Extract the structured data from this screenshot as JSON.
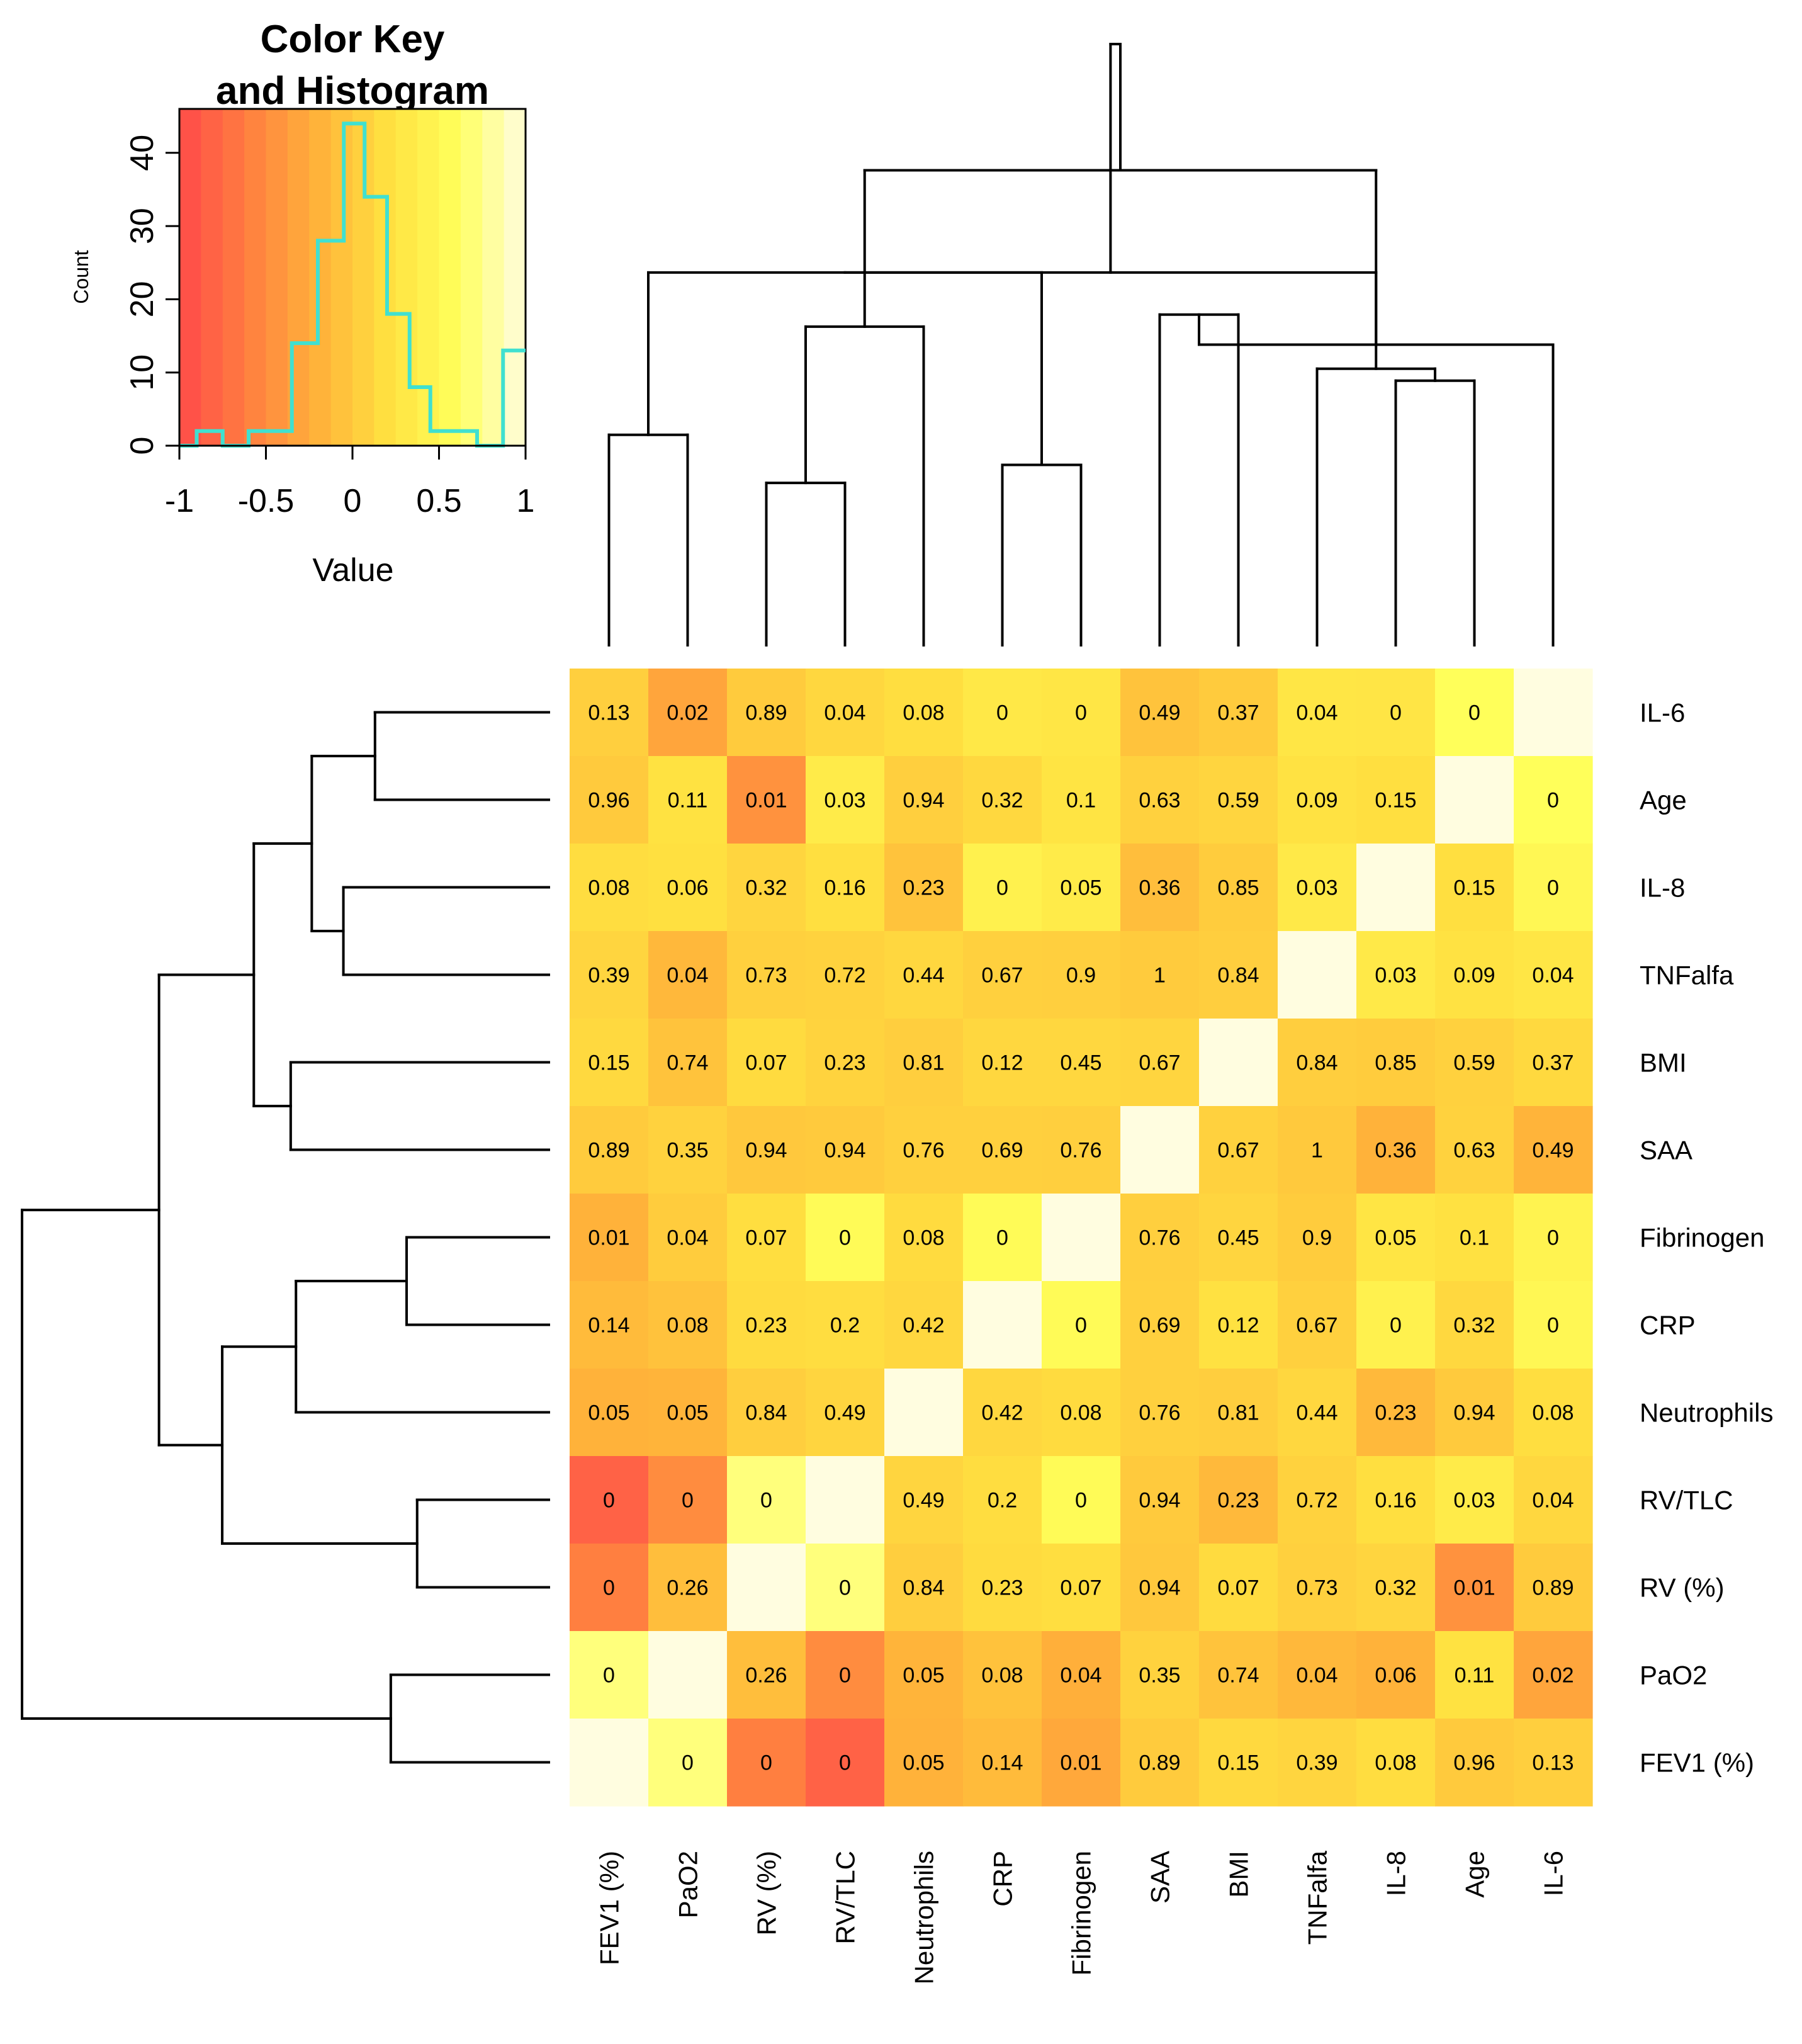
{
  "chart_data": {
    "type": "heatmap",
    "key": {
      "title_lines": [
        "Color Key",
        "and Histogram"
      ],
      "xlabel": "Value",
      "ylabel": "Count",
      "x_ticks": [
        "-1",
        "-0.5",
        "0",
        "0.5",
        "1"
      ],
      "y_ticks": [
        "0",
        "10",
        "20",
        "30",
        "40"
      ],
      "xlim": [
        -1,
        1
      ],
      "ylim": [
        0,
        46
      ],
      "histogram_color": "#40e0d0",
      "histogram": [
        {
          "x0": -1.0,
          "x1": -0.9,
          "count": 0
        },
        {
          "x0": -0.9,
          "x1": -0.75,
          "count": 2
        },
        {
          "x0": -0.75,
          "x1": -0.6,
          "count": 0
        },
        {
          "x0": -0.6,
          "x1": -0.35,
          "count": 2
        },
        {
          "x0": -0.35,
          "x1": -0.2,
          "count": 14
        },
        {
          "x0": -0.2,
          "x1": -0.05,
          "count": 28
        },
        {
          "x0": -0.05,
          "x1": 0.07,
          "count": 44
        },
        {
          "x0": 0.07,
          "x1": 0.2,
          "count": 34
        },
        {
          "x0": 0.2,
          "x1": 0.33,
          "count": 18
        },
        {
          "x0": 0.33,
          "x1": 0.45,
          "count": 8
        },
        {
          "x0": 0.45,
          "x1": 0.72,
          "count": 2
        },
        {
          "x0": 0.72,
          "x1": 0.87,
          "count": 0
        },
        {
          "x0": 0.87,
          "x1": 1.0,
          "count": 13
        }
      ]
    },
    "color_scale": [
      "#ff4a4a",
      "#ff7f40",
      "#ffb23a",
      "#ffe040",
      "#ffff5a",
      "#fffde0"
    ],
    "columns": [
      "FEV1 (%)",
      "PaO2",
      "RV (%)",
      "RV/TLC",
      "Neutrophils",
      "CRP",
      "Fibrinogen",
      "SAA",
      "BMI",
      "TNFalfa",
      "IL-8",
      "Age",
      "IL-6"
    ],
    "rows": [
      "IL-6",
      "Age",
      "IL-8",
      "TNFalfa",
      "BMI",
      "SAA",
      "Fibrinogen",
      "CRP",
      "Neutrophils",
      "RV/TLC",
      "RV (%)",
      "PaO2",
      "FEV1 (%)"
    ],
    "labels": [
      [
        "0.13",
        "0.02",
        "0.89",
        "0.04",
        "0.08",
        "0",
        "0",
        "0.49",
        "0.37",
        "0.04",
        "0",
        "0",
        ""
      ],
      [
        "0.96",
        "0.11",
        "0.01",
        "0.03",
        "0.94",
        "0.32",
        "0.1",
        "0.63",
        "0.59",
        "0.09",
        "0.15",
        "",
        "0"
      ],
      [
        "0.08",
        "0.06",
        "0.32",
        "0.16",
        "0.23",
        "0",
        "0.05",
        "0.36",
        "0.85",
        "0.03",
        "",
        "0.15",
        "0"
      ],
      [
        "0.39",
        "0.04",
        "0.73",
        "0.72",
        "0.44",
        "0.67",
        "0.9",
        "1",
        "0.84",
        "",
        "0.03",
        "0.09",
        "0.04"
      ],
      [
        "0.15",
        "0.74",
        "0.07",
        "0.23",
        "0.81",
        "0.12",
        "0.45",
        "0.67",
        "",
        "0.84",
        "0.85",
        "0.59",
        "0.37"
      ],
      [
        "0.89",
        "0.35",
        "0.94",
        "0.94",
        "0.76",
        "0.69",
        "0.76",
        "",
        "0.67",
        "1",
        "0.36",
        "0.63",
        "0.49"
      ],
      [
        "0.01",
        "0.04",
        "0.07",
        "0",
        "0.08",
        "0",
        "",
        "0.76",
        "0.45",
        "0.9",
        "0.05",
        "0.1",
        "0"
      ],
      [
        "0.14",
        "0.08",
        "0.23",
        "0.2",
        "0.42",
        "",
        "0",
        "0.69",
        "0.12",
        "0.67",
        "0",
        "0.32",
        "0"
      ],
      [
        "0.05",
        "0.05",
        "0.84",
        "0.49",
        "",
        "0.42",
        "0.08",
        "0.76",
        "0.81",
        "0.44",
        "0.23",
        "0.94",
        "0.08"
      ],
      [
        "0",
        "0",
        "0",
        "",
        "0.49",
        "0.2",
        "0",
        "0.94",
        "0.23",
        "0.72",
        "0.16",
        "0.03",
        "0.04"
      ],
      [
        "0",
        "0.26",
        "",
        "0",
        "0.84",
        "0.23",
        "0.07",
        "0.94",
        "0.07",
        "0.73",
        "0.32",
        "0.01",
        "0.89"
      ],
      [
        "0",
        "",
        "0.26",
        "0",
        "0.05",
        "0.08",
        "0.04",
        "0.35",
        "0.74",
        "0.04",
        "0.06",
        "0.11",
        "0.02"
      ],
      [
        "",
        "0",
        "0",
        "0",
        "0.05",
        "0.14",
        "0.01",
        "0.89",
        "0.15",
        "0.39",
        "0.08",
        "0.96",
        "0.13"
      ]
    ],
    "correlations": [
      [
        0.05,
        -0.3,
        0.02,
        0.12,
        0.18,
        0.3,
        0.28,
        -0.05,
        0.02,
        0.28,
        0.27,
        0.6,
        1
      ],
      [
        0.01,
        0.22,
        -0.45,
        0.34,
        0.05,
        0.13,
        0.25,
        0.07,
        0.1,
        0.23,
        0.19,
        1,
        0.6
      ],
      [
        0.17,
        0.2,
        0.1,
        0.19,
        -0.05,
        0.42,
        0.34,
        -0.1,
        0.03,
        0.32,
        1,
        0.19,
        0.5
      ],
      [
        0.1,
        -0.15,
        0.06,
        0.08,
        0.12,
        0.06,
        0.05,
        0.02,
        0.04,
        1,
        0.32,
        0.23,
        0.28
      ],
      [
        0.14,
        -0.05,
        0.16,
        0.09,
        0.04,
        0.12,
        0.12,
        0.1,
        1,
        0.04,
        0.03,
        0.07,
        0.14
      ],
      [
        0.02,
        0.08,
        -0.01,
        0.01,
        0.06,
        0.06,
        0.05,
        1,
        0.07,
        0.0,
        -0.2,
        0.08,
        -0.18
      ],
      [
        -0.2,
        0.03,
        0.18,
        0.55,
        0.16,
        0.55,
        1,
        0.05,
        0.1,
        0.03,
        0.26,
        0.21,
        0.44
      ],
      [
        -0.12,
        -0.06,
        0.16,
        0.17,
        0.12,
        1,
        0.55,
        0.06,
        0.21,
        0.06,
        0.42,
        0.13,
        0.5
      ],
      [
        -0.2,
        -0.18,
        0.04,
        0.1,
        1,
        0.12,
        0.16,
        0.06,
        0.04,
        0.12,
        -0.14,
        0.01,
        0.18
      ],
      [
        -0.82,
        -0.5,
        0.7,
        1,
        0.1,
        0.17,
        0.55,
        0.01,
        -0.14,
        0.08,
        0.19,
        0.34,
        0.12
      ],
      [
        -0.6,
        -0.1,
        1,
        0.7,
        0.04,
        0.16,
        0.18,
        -0.01,
        0.16,
        0.06,
        0.1,
        -0.45,
        0.02
      ],
      [
        0.7,
        1,
        -0.1,
        -0.5,
        -0.18,
        -0.06,
        -0.22,
        0.08,
        -0.05,
        -0.15,
        -0.2,
        0.22,
        -0.3
      ],
      [
        1,
        0.7,
        -0.6,
        -0.82,
        -0.2,
        -0.12,
        -0.28,
        0.02,
        0.14,
        0.1,
        0.17,
        0.01,
        0.05
      ]
    ],
    "column_dendrogram": [
      {
        "a": 0,
        "b": 1,
        "h": 0.35
      },
      {
        "a": 2,
        "b": 3,
        "h": 0.27
      },
      {
        "a": 5,
        "b": 6,
        "h": 0.3
      },
      {
        "a": 4,
        "b": 14,
        "h": 0.53
      },
      {
        "a": 13,
        "b": 15,
        "h": 0.62
      },
      {
        "a": 7,
        "b": 8,
        "h": 0.55
      },
      {
        "a": 10,
        "b": 11,
        "h": 0.44
      },
      {
        "a": 9,
        "b": 19,
        "h": 0.46
      },
      {
        "a": 12,
        "b": 18,
        "h": 0.5
      },
      {
        "a": 17,
        "b": 20,
        "h": 0.62
      },
      {
        "a": 16,
        "b": 21,
        "h": 0.79
      },
      {
        "a": 22,
        "b": 23,
        "h": 1.0
      }
    ],
    "row_dendrogram": [
      {
        "a": 0,
        "b": 1,
        "h": 0.33
      },
      {
        "a": 2,
        "b": 3,
        "h": 0.39
      },
      {
        "a": 13,
        "b": 14,
        "h": 0.45
      },
      {
        "a": 4,
        "b": 5,
        "h": 0.49
      },
      {
        "a": 15,
        "b": 16,
        "h": 0.56
      },
      {
        "a": 6,
        "b": 7,
        "h": 0.27
      },
      {
        "a": 8,
        "b": 18,
        "h": 0.48
      },
      {
        "a": 9,
        "b": 10,
        "h": 0.25
      },
      {
        "a": 19,
        "b": 20,
        "h": 0.62
      },
      {
        "a": 17,
        "b": 21,
        "h": 0.74
      },
      {
        "a": 11,
        "b": 12,
        "h": 0.3
      },
      {
        "a": 22,
        "b": 23,
        "h": 1.0
      }
    ]
  }
}
